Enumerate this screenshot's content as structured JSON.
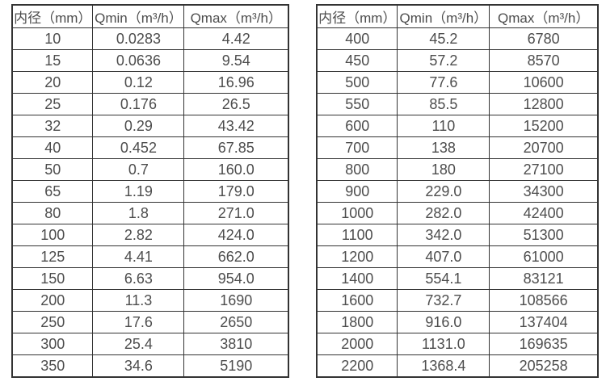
{
  "colors": {
    "border": "#333333",
    "text": "#4d4d4d",
    "background": "#ffffff"
  },
  "tables": [
    {
      "name": "flow-rate-table-small-diameters",
      "headers": [
        "内径（mm）",
        "Qmin（m³/h）",
        "Qmax（m³/h）"
      ],
      "rows": [
        [
          "10",
          "0.0283",
          "4.42"
        ],
        [
          "15",
          "0.0636",
          "9.54"
        ],
        [
          "20",
          "0.12",
          "16.96"
        ],
        [
          "25",
          "0.176",
          "26.5"
        ],
        [
          "32",
          "0.29",
          "43.42"
        ],
        [
          "40",
          "0.452",
          "67.85"
        ],
        [
          "50",
          "0.7",
          "160.0"
        ],
        [
          "65",
          "1.19",
          "179.0"
        ],
        [
          "80",
          "1.8",
          "271.0"
        ],
        [
          "100",
          "2.82",
          "424.0"
        ],
        [
          "125",
          "4.41",
          "662.0"
        ],
        [
          "150",
          "6.63",
          "954.0"
        ],
        [
          "200",
          "11.3",
          "1690"
        ],
        [
          "250",
          "17.6",
          "2650"
        ],
        [
          "300",
          "25.4",
          "3810"
        ],
        [
          "350",
          "34.6",
          "5190"
        ]
      ]
    },
    {
      "name": "flow-rate-table-large-diameters",
      "headers": [
        "内径（mm）",
        "Qmin（m³/h）",
        "Qmax（m³/h）"
      ],
      "rows": [
        [
          "400",
          "45.2",
          "6780"
        ],
        [
          "450",
          "57.2",
          "8570"
        ],
        [
          "500",
          "77.6",
          "10600"
        ],
        [
          "550",
          "85.5",
          "12800"
        ],
        [
          "600",
          "110",
          "15200"
        ],
        [
          "700",
          "138",
          "20700"
        ],
        [
          "800",
          "180",
          "27100"
        ],
        [
          "900",
          "229.0",
          "34300"
        ],
        [
          "1000",
          "282.0",
          "42400"
        ],
        [
          "1100",
          "342.0",
          "51300"
        ],
        [
          "1200",
          "407.0",
          "61000"
        ],
        [
          "1400",
          "554.1",
          "83121"
        ],
        [
          "1600",
          "732.7",
          "108566"
        ],
        [
          "1800",
          "916.0",
          "137404"
        ],
        [
          "2000",
          "1131.0",
          "169635"
        ],
        [
          "2200",
          "1368.4",
          "205258"
        ]
      ]
    }
  ]
}
